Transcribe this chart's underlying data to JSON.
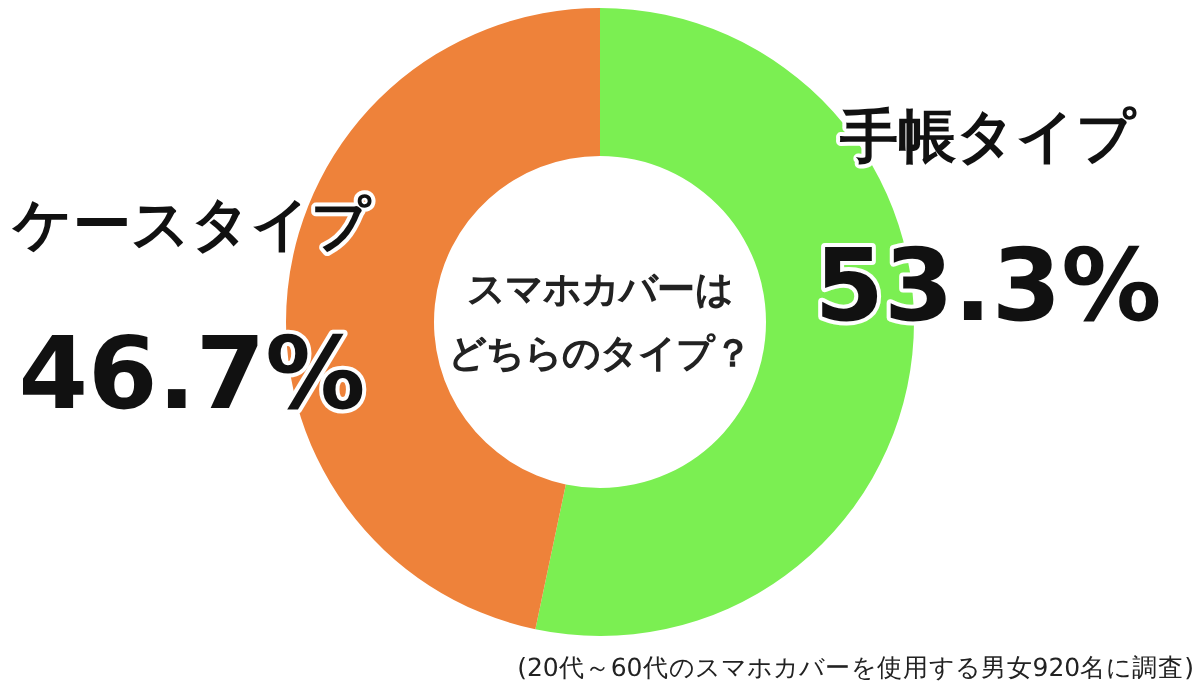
{
  "chart_data": {
    "type": "donut",
    "title": "スマホカバーはどちらのタイプ？",
    "categories": [
      "手帳タイプ",
      "ケースタイプ"
    ],
    "values": [
      53.3,
      46.7
    ],
    "colors": [
      "#7bef52",
      "#ee823a"
    ],
    "value_labels": [
      "53.3%",
      "46.7%"
    ],
    "annotations": [
      "(20代～60代のスマホカバーを使用する男女920名に調査)"
    ]
  }
}
